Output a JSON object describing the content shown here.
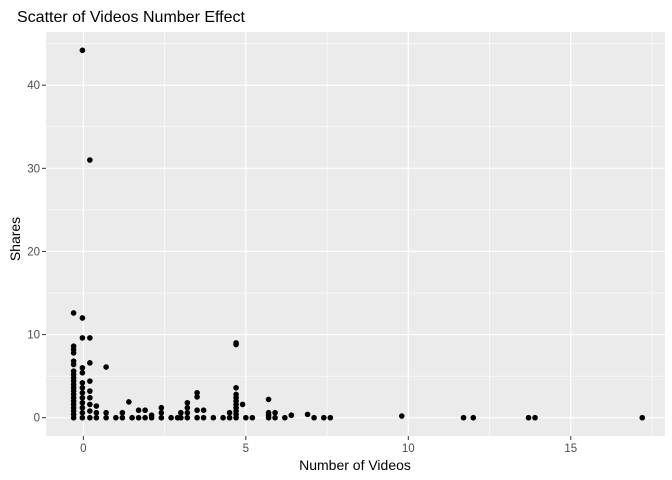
{
  "chart_data": {
    "type": "scatter",
    "title": "Scatter of Videos Number Effect",
    "xlabel": "Number of Videos",
    "ylabel": "Shares",
    "xlim": [
      -1.15,
      17.9
    ],
    "ylim": [
      -2.2,
      46.4
    ],
    "x_ticks": [
      0,
      5,
      10,
      15
    ],
    "x_tick_labels": [
      "0",
      "5",
      "10",
      "15"
    ],
    "x_minor_ticks": [
      2.5,
      7.5,
      12.5,
      17.5
    ],
    "y_ticks": [
      0,
      10,
      20,
      30,
      40
    ],
    "y_tick_labels": [
      "0",
      "10",
      "20",
      "30",
      "40"
    ],
    "y_minor_ticks": [
      5,
      15,
      25,
      35,
      45
    ],
    "grid": true,
    "legend": "none",
    "point_color": "#000000",
    "panel_color": "#ebebeb",
    "grid_color": "#ffffff",
    "points": [
      {
        "x": -0.03,
        "y": 44.2
      },
      {
        "x": 0.2,
        "y": 31.0
      },
      {
        "x": -0.3,
        "y": 12.6
      },
      {
        "x": -0.03,
        "y": 12.0
      },
      {
        "x": -0.03,
        "y": 9.6
      },
      {
        "x": 0.2,
        "y": 9.6
      },
      {
        "x": -0.3,
        "y": 8.6
      },
      {
        "x": -0.3,
        "y": 8.2
      },
      {
        "x": -0.3,
        "y": 7.8
      },
      {
        "x": -0.3,
        "y": 6.8
      },
      {
        "x": -0.3,
        "y": 6.4
      },
      {
        "x": -0.3,
        "y": 5.6
      },
      {
        "x": -0.3,
        "y": 5.2
      },
      {
        "x": -0.3,
        "y": 4.8
      },
      {
        "x": -0.3,
        "y": 4.4
      },
      {
        "x": -0.3,
        "y": 4.0
      },
      {
        "x": -0.3,
        "y": 3.6
      },
      {
        "x": -0.3,
        "y": 3.2
      },
      {
        "x": -0.3,
        "y": 2.8
      },
      {
        "x": -0.3,
        "y": 2.4
      },
      {
        "x": -0.3,
        "y": 2.0
      },
      {
        "x": -0.3,
        "y": 1.6
      },
      {
        "x": -0.3,
        "y": 1.2
      },
      {
        "x": -0.3,
        "y": 0.8
      },
      {
        "x": -0.3,
        "y": 0.4
      },
      {
        "x": -0.3,
        "y": 0.0
      },
      {
        "x": -0.03,
        "y": 6.0
      },
      {
        "x": -0.03,
        "y": 5.4
      },
      {
        "x": -0.03,
        "y": 4.2
      },
      {
        "x": -0.03,
        "y": 3.6
      },
      {
        "x": -0.03,
        "y": 3.0
      },
      {
        "x": -0.03,
        "y": 2.4
      },
      {
        "x": -0.03,
        "y": 1.8
      },
      {
        "x": -0.03,
        "y": 1.2
      },
      {
        "x": -0.03,
        "y": 0.6
      },
      {
        "x": -0.03,
        "y": 0.0
      },
      {
        "x": 0.2,
        "y": 6.6
      },
      {
        "x": 0.2,
        "y": 4.4
      },
      {
        "x": 0.2,
        "y": 3.2
      },
      {
        "x": 0.2,
        "y": 2.4
      },
      {
        "x": 0.2,
        "y": 1.6
      },
      {
        "x": 0.2,
        "y": 0.8
      },
      {
        "x": 0.2,
        "y": 0.0
      },
      {
        "x": 0.4,
        "y": 1.4
      },
      {
        "x": 0.4,
        "y": 0.6
      },
      {
        "x": 0.4,
        "y": 0.0
      },
      {
        "x": 0.7,
        "y": 6.1
      },
      {
        "x": 0.7,
        "y": 0.6
      },
      {
        "x": 0.7,
        "y": 0.0
      },
      {
        "x": 1.0,
        "y": 0.0
      },
      {
        "x": 1.2,
        "y": 0.6
      },
      {
        "x": 1.2,
        "y": 0.0
      },
      {
        "x": 1.4,
        "y": 1.9
      },
      {
        "x": 1.5,
        "y": 0.0
      },
      {
        "x": 1.7,
        "y": 0.9
      },
      {
        "x": 1.7,
        "y": 0.0
      },
      {
        "x": 1.9,
        "y": 0.9
      },
      {
        "x": 1.9,
        "y": 0.0
      },
      {
        "x": 2.1,
        "y": 0.3
      },
      {
        "x": 2.1,
        "y": 0.0
      },
      {
        "x": 2.4,
        "y": 1.2
      },
      {
        "x": 2.4,
        "y": 0.6
      },
      {
        "x": 2.4,
        "y": 0.0
      },
      {
        "x": 2.7,
        "y": 0.0
      },
      {
        "x": 2.9,
        "y": 0.0
      },
      {
        "x": 3.0,
        "y": 0.6
      },
      {
        "x": 3.0,
        "y": 0.0
      },
      {
        "x": 3.2,
        "y": 1.8
      },
      {
        "x": 3.2,
        "y": 1.2
      },
      {
        "x": 3.2,
        "y": 0.6
      },
      {
        "x": 3.2,
        "y": 0.0
      },
      {
        "x": 3.5,
        "y": 3.0
      },
      {
        "x": 3.5,
        "y": 2.5
      },
      {
        "x": 3.5,
        "y": 0.9
      },
      {
        "x": 3.5,
        "y": 0.0
      },
      {
        "x": 3.7,
        "y": 0.9
      },
      {
        "x": 3.7,
        "y": 0.0
      },
      {
        "x": 4.0,
        "y": 0.0
      },
      {
        "x": 4.3,
        "y": 0.0
      },
      {
        "x": 4.5,
        "y": 0.6
      },
      {
        "x": 4.5,
        "y": 0.0
      },
      {
        "x": 4.7,
        "y": 9.0
      },
      {
        "x": 4.7,
        "y": 8.8
      },
      {
        "x": 4.7,
        "y": 3.6
      },
      {
        "x": 4.7,
        "y": 2.8
      },
      {
        "x": 4.7,
        "y": 2.4
      },
      {
        "x": 4.7,
        "y": 2.0
      },
      {
        "x": 4.7,
        "y": 1.6
      },
      {
        "x": 4.7,
        "y": 1.2
      },
      {
        "x": 4.7,
        "y": 0.8
      },
      {
        "x": 4.7,
        "y": 0.4
      },
      {
        "x": 4.7,
        "y": 0.0
      },
      {
        "x": 4.9,
        "y": 1.6
      },
      {
        "x": 5.0,
        "y": 0.0
      },
      {
        "x": 5.2,
        "y": 0.0
      },
      {
        "x": 5.7,
        "y": 2.2
      },
      {
        "x": 5.7,
        "y": 0.6
      },
      {
        "x": 5.7,
        "y": 0.3
      },
      {
        "x": 5.7,
        "y": 0.0
      },
      {
        "x": 5.9,
        "y": 0.6
      },
      {
        "x": 5.9,
        "y": 0.0
      },
      {
        "x": 6.2,
        "y": 0.0
      },
      {
        "x": 6.4,
        "y": 0.3
      },
      {
        "x": 6.9,
        "y": 0.4
      },
      {
        "x": 7.1,
        "y": 0.0
      },
      {
        "x": 7.4,
        "y": 0.0
      },
      {
        "x": 7.6,
        "y": 0.0
      },
      {
        "x": 9.8,
        "y": 0.2
      },
      {
        "x": 11.7,
        "y": 0.0
      },
      {
        "x": 12.0,
        "y": 0.0
      },
      {
        "x": 13.7,
        "y": 0.0
      },
      {
        "x": 13.9,
        "y": 0.0
      },
      {
        "x": 17.2,
        "y": 0.0
      }
    ]
  }
}
